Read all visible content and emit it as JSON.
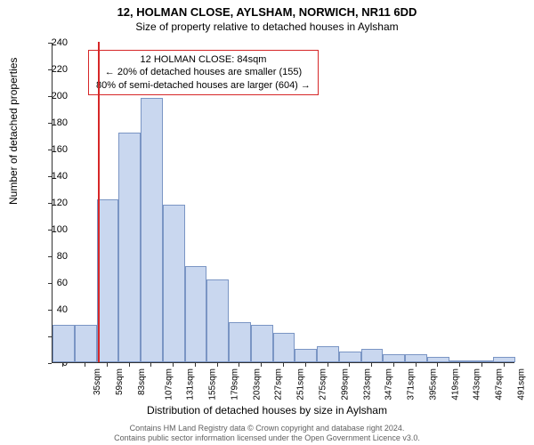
{
  "title": "12, HOLMAN CLOSE, AYLSHAM, NORWICH, NR11 6DD",
  "subtitle": "Size of property relative to detached houses in Aylsham",
  "ylabel": "Number of detached properties",
  "xlabel": "Distribution of detached houses by size in Aylsham",
  "chart": {
    "type": "bar",
    "background_color": "#ffffff",
    "bar_fill": "#c9d7ef",
    "bar_border": "#7a95c4",
    "marker_color": "#d62728",
    "marker_x": 84,
    "x_start": 35,
    "x_step": 24,
    "x_suffix": "sqm",
    "x_count": 21,
    "ylim": [
      0,
      240
    ],
    "ytick_step": 20,
    "values": [
      28,
      28,
      122,
      172,
      198,
      118,
      72,
      62,
      30,
      28,
      22,
      10,
      12,
      8,
      10,
      6,
      6,
      4,
      0,
      0,
      4
    ],
    "info_box": {
      "line1": "12 HOLMAN CLOSE: 84sqm",
      "line2": "← 20% of detached houses are smaller (155)",
      "line3": "80% of semi-detached houses are larger (604) →"
    }
  },
  "footer": {
    "line1": "Contains HM Land Registry data © Crown copyright and database right 2024.",
    "line2": "Contains public sector information licensed under the Open Government Licence v3.0."
  },
  "font": {
    "title_size": 13,
    "sub_size": 12,
    "tick_size": 11,
    "label_size": 12,
    "info_size": 11,
    "footer_size": 9
  }
}
